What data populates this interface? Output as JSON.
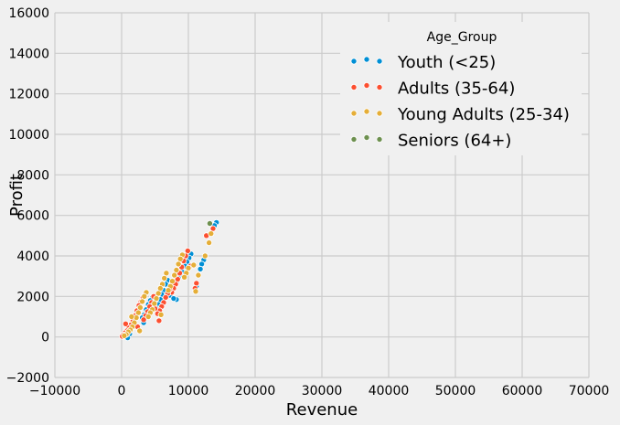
{
  "chart_data": {
    "type": "scatter",
    "title": "",
    "xlabel": "Revenue",
    "ylabel": "Profit",
    "xlim": [
      -10000,
      70000
    ],
    "ylim": [
      -2000,
      16000
    ],
    "x_ticks": [
      -10000,
      0,
      10000,
      20000,
      30000,
      40000,
      50000,
      60000,
      70000
    ],
    "y_ticks": [
      -2000,
      0,
      2000,
      4000,
      6000,
      8000,
      10000,
      12000,
      14000,
      16000
    ],
    "grid": true,
    "legend": {
      "title": "Age_Group",
      "placement": "top-right"
    },
    "series": [
      {
        "name": "Youth (<25)",
        "color": "#008fd5",
        "points": [
          [
            14200,
            5650
          ],
          [
            13900,
            5500
          ],
          [
            12300,
            3800
          ],
          [
            12000,
            3600
          ],
          [
            11800,
            3350
          ],
          [
            11200,
            2500
          ],
          [
            10400,
            4100
          ],
          [
            10100,
            3900
          ],
          [
            9800,
            3700
          ],
          [
            9500,
            3500
          ],
          [
            9100,
            3200
          ],
          [
            8800,
            3050
          ],
          [
            8500,
            2900
          ],
          [
            8200,
            2700
          ],
          [
            7900,
            2500
          ],
          [
            7600,
            2300
          ],
          [
            7300,
            2050
          ],
          [
            8200,
            1850
          ],
          [
            7800,
            1900
          ],
          [
            6900,
            2800
          ],
          [
            6600,
            2600
          ],
          [
            6300,
            2300
          ],
          [
            6000,
            2100
          ],
          [
            5800,
            1850
          ],
          [
            5500,
            1600
          ],
          [
            5200,
            1400
          ],
          [
            4600,
            1950
          ],
          [
            4300,
            1800
          ],
          [
            4000,
            1600
          ],
          [
            3700,
            1350
          ],
          [
            3400,
            1100
          ],
          [
            3100,
            950
          ],
          [
            3300,
            700
          ],
          [
            2800,
            1500
          ],
          [
            2500,
            1250
          ],
          [
            2200,
            1050
          ],
          [
            1900,
            850
          ],
          [
            1600,
            650
          ],
          [
            1800,
            500
          ],
          [
            1300,
            450
          ],
          [
            1000,
            300
          ],
          [
            700,
            180
          ],
          [
            500,
            100
          ],
          [
            300,
            30
          ],
          [
            1200,
            150
          ],
          [
            900,
            -40
          ]
        ]
      },
      {
        "name": "Adults (35-64)",
        "color": "#fc4f30",
        "points": [
          [
            13700,
            5350
          ],
          [
            12700,
            5000
          ],
          [
            11200,
            2650
          ],
          [
            11000,
            2400
          ],
          [
            10300,
            3500
          ],
          [
            9900,
            4250
          ],
          [
            9600,
            4000
          ],
          [
            9300,
            3750
          ],
          [
            9000,
            3450
          ],
          [
            8700,
            3150
          ],
          [
            8400,
            2850
          ],
          [
            8100,
            2600
          ],
          [
            7800,
            2400
          ],
          [
            7500,
            2200
          ],
          [
            7200,
            2350
          ],
          [
            6900,
            2150
          ],
          [
            6600,
            1950
          ],
          [
            6300,
            1700
          ],
          [
            6000,
            1500
          ],
          [
            5700,
            1300
          ],
          [
            5400,
            1150
          ],
          [
            5600,
            800
          ],
          [
            5000,
            1400
          ],
          [
            4800,
            2000
          ],
          [
            4500,
            1700
          ],
          [
            4200,
            1500
          ],
          [
            3900,
            1250
          ],
          [
            3600,
            1050
          ],
          [
            3300,
            850
          ],
          [
            3500,
            2100
          ],
          [
            3200,
            1950
          ],
          [
            2900,
            1750
          ],
          [
            2600,
            1550
          ],
          [
            2300,
            1300
          ],
          [
            2000,
            1050
          ],
          [
            1700,
            800
          ],
          [
            1400,
            600
          ],
          [
            1100,
            450
          ],
          [
            800,
            300
          ],
          [
            500,
            200
          ],
          [
            200,
            100
          ],
          [
            100,
            30
          ],
          [
            2400,
            500
          ],
          [
            600,
            650
          ]
        ]
      },
      {
        "name": "Young Adults (25-34)",
        "color": "#e5ae38",
        "points": [
          [
            13400,
            5100
          ],
          [
            13100,
            4650
          ],
          [
            12500,
            4000
          ],
          [
            11500,
            3050
          ],
          [
            11100,
            2250
          ],
          [
            10800,
            3550
          ],
          [
            10000,
            3400
          ],
          [
            9700,
            3150
          ],
          [
            9400,
            2950
          ],
          [
            9100,
            4050
          ],
          [
            8800,
            3850
          ],
          [
            8500,
            3600
          ],
          [
            8200,
            3300
          ],
          [
            7900,
            3050
          ],
          [
            7600,
            2750
          ],
          [
            7300,
            2500
          ],
          [
            7000,
            2300
          ],
          [
            6700,
            3150
          ],
          [
            6400,
            2900
          ],
          [
            6100,
            2600
          ],
          [
            5800,
            2400
          ],
          [
            5500,
            2150
          ],
          [
            5200,
            1900
          ],
          [
            4900,
            1650
          ],
          [
            4600,
            1350
          ],
          [
            4300,
            1200
          ],
          [
            4000,
            1000
          ],
          [
            3700,
            2200
          ],
          [
            3400,
            2000
          ],
          [
            3100,
            1750
          ],
          [
            2800,
            1450
          ],
          [
            2500,
            1200
          ],
          [
            2200,
            950
          ],
          [
            1900,
            700
          ],
          [
            1600,
            500
          ],
          [
            1300,
            350
          ],
          [
            1000,
            250
          ],
          [
            700,
            120
          ],
          [
            400,
            60
          ],
          [
            1500,
            1000
          ],
          [
            2700,
            300
          ],
          [
            5900,
            1100
          ]
        ]
      },
      {
        "name": "Seniors (64+)",
        "color": "#6d904f",
        "points": [
          [
            13200,
            5600
          ]
        ]
      }
    ]
  }
}
